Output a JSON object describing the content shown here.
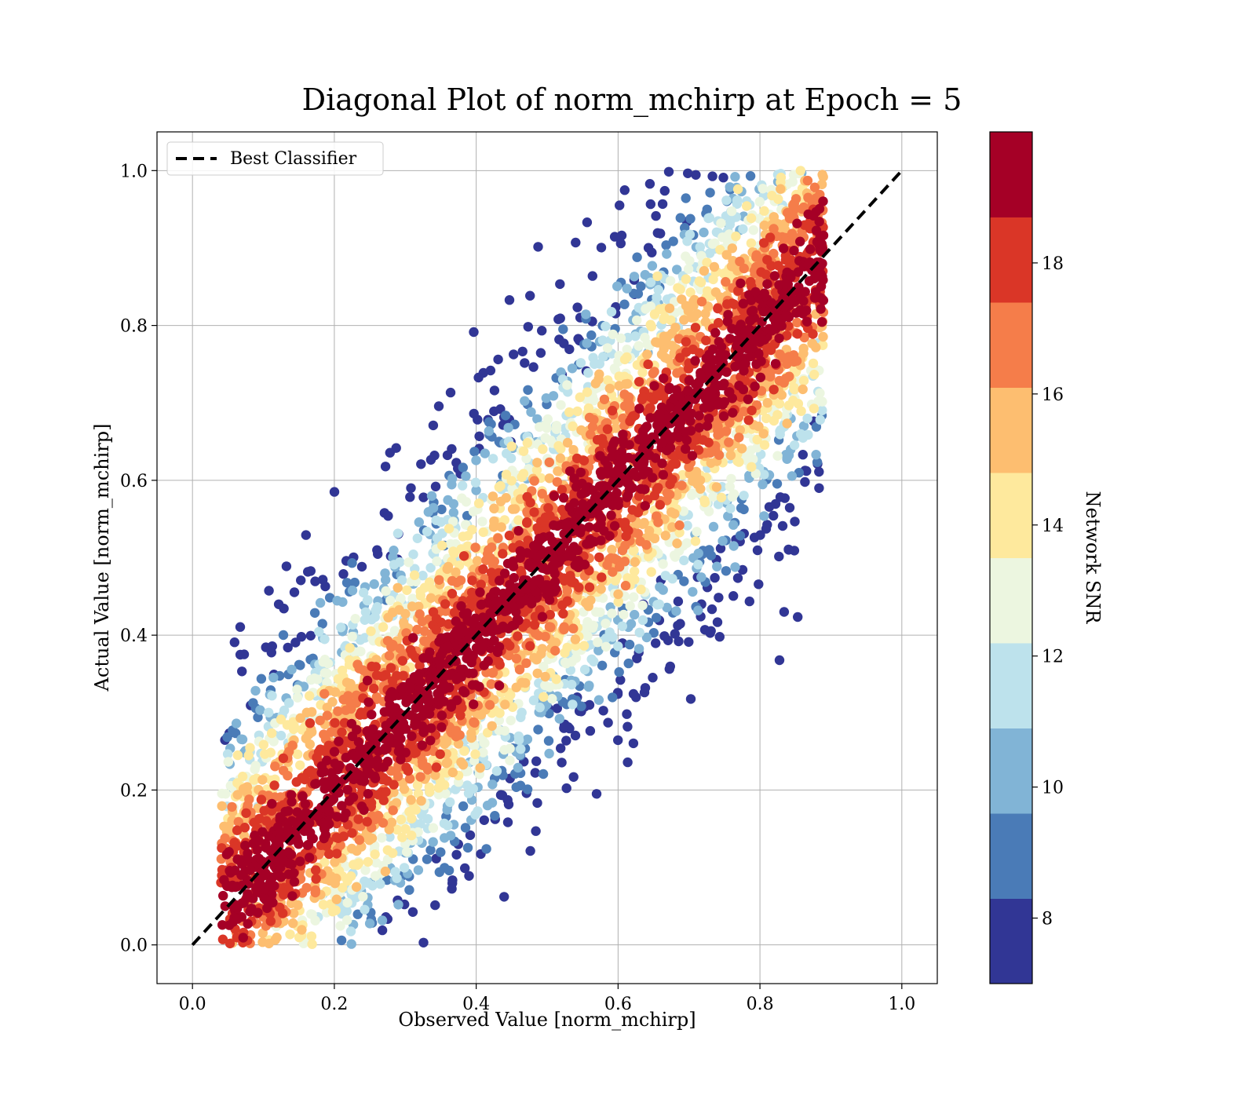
{
  "chart_data": {
    "type": "scatter",
    "title": "Diagonal Plot of norm_mchirp at Epoch = 5",
    "xlabel": "Observed Value [norm_mchirp]",
    "ylabel": "Actual Value [norm_mchirp]",
    "xlim": [
      -0.05,
      1.05
    ],
    "ylim": [
      -0.05,
      1.05
    ],
    "xticks": [
      "0.0",
      "0.2",
      "0.4",
      "0.6",
      "0.8",
      "1.0"
    ],
    "yticks": [
      "0.0",
      "0.2",
      "0.4",
      "0.6",
      "0.8",
      "1.0"
    ],
    "grid": true,
    "legend": {
      "placement": "upper-left",
      "entries": [
        {
          "label": "Best Classifier",
          "style": "black dashed line"
        }
      ]
    },
    "reference_line": {
      "name": "Best Classifier",
      "x": [
        0.0,
        1.0
      ],
      "y": [
        0.0,
        1.0
      ],
      "color": "#000000"
    },
    "colorbar": {
      "label": "Network SNR",
      "range": [
        7,
        20
      ],
      "ticks": [
        "8",
        "10",
        "12",
        "14",
        "16",
        "18"
      ],
      "tick_values": [
        8,
        10,
        12,
        14,
        16,
        18
      ],
      "bins": [
        {
          "from": 7,
          "to": 8.3,
          "color": "#313695"
        },
        {
          "from": 8.3,
          "to": 9.6,
          "color": "#4a7bb7"
        },
        {
          "from": 9.6,
          "to": 10.9,
          "color": "#81b4d6"
        },
        {
          "from": 10.9,
          "to": 12.2,
          "color": "#bde2ec"
        },
        {
          "from": 12.2,
          "to": 13.5,
          "color": "#ecf6e0"
        },
        {
          "from": 13.5,
          "to": 14.8,
          "color": "#fee99d"
        },
        {
          "from": 14.8,
          "to": 16.1,
          "color": "#fdbe70"
        },
        {
          "from": 16.1,
          "to": 17.4,
          "color": "#f57d4a"
        },
        {
          "from": 17.4,
          "to": 18.7,
          "color": "#da3627"
        },
        {
          "from": 18.7,
          "to": 20,
          "color": "#a50026"
        }
      ]
    },
    "points_summary": {
      "description_values": "dense cloud of many thousands of points scattered around the diagonal",
      "x_range": [
        0.04,
        0.89
      ],
      "y_range": [
        0.0,
        1.0
      ],
      "spread_about_diagonal": 0.22,
      "snr_trend": "high SNR (~19) near the diagonal, low SNR (~7-9) far from it"
    }
  }
}
